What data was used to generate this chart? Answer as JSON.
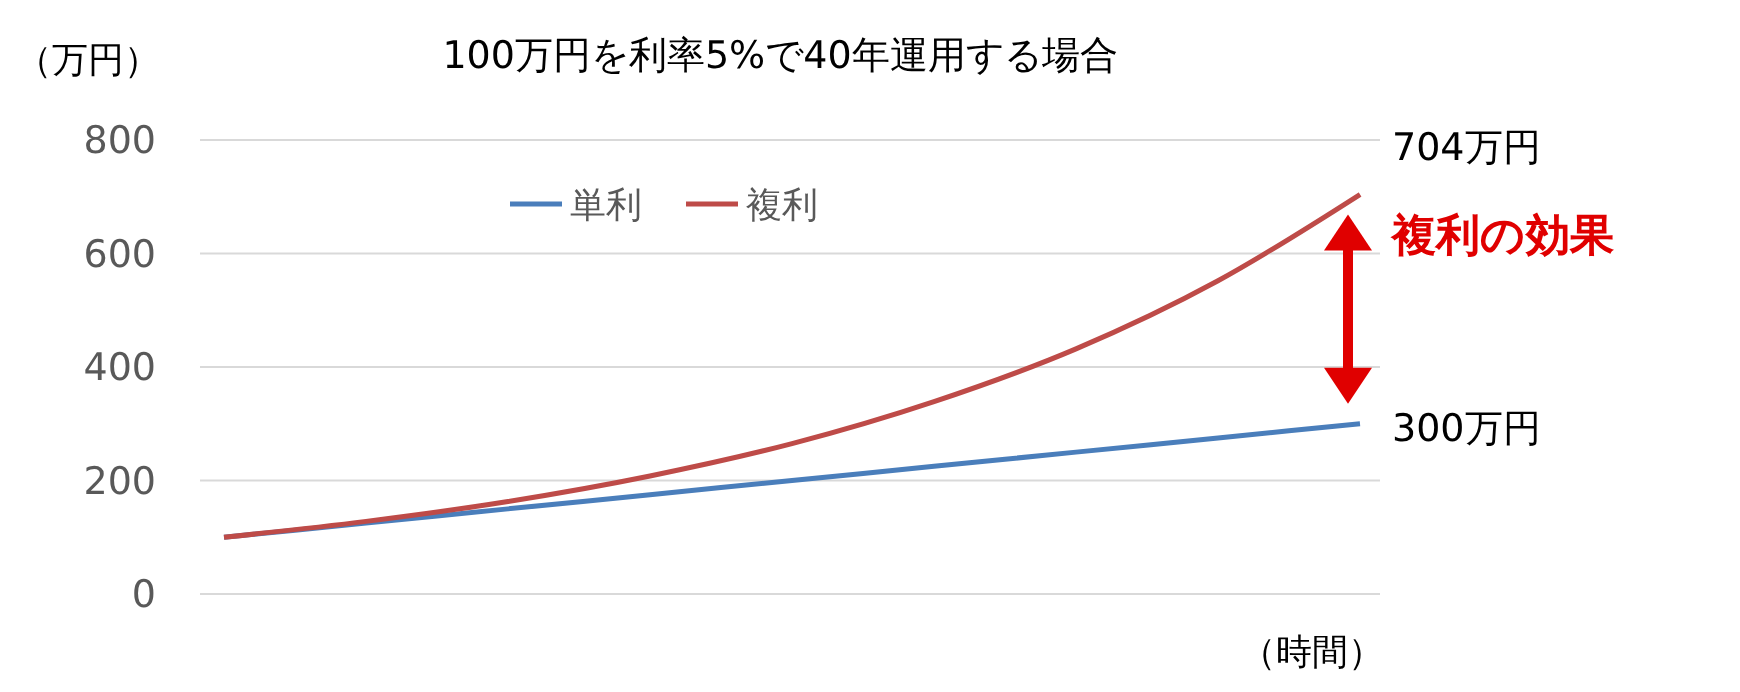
{
  "chart_data": {
    "type": "line",
    "title": "100万円を利率5%で40年運用する場合",
    "ylabel": "（万円）",
    "xlabel": "（時間）",
    "categories": [
      null,
      null,
      null,
      null,
      null,
      null,
      null,
      null,
      null
    ],
    "series": [
      {
        "name": "単利",
        "color": "#4a7ebb",
        "values": [
          100,
          125,
          150,
          175,
          200,
          225,
          250,
          275,
          300
        ]
      },
      {
        "name": "複利",
        "color": "#be4b48",
        "values": [
          100,
          128,
          163,
          208,
          265,
          339,
          432,
          552,
          704
        ]
      }
    ],
    "ylim": [
      0,
      800
    ],
    "yticks": [
      0,
      200,
      400,
      600,
      800
    ],
    "grid": "y",
    "legend": "top left",
    "marker": "none",
    "line_style": "solid",
    "annotations": [
      "704万円",
      "300万円",
      "複利の効果"
    ]
  }
}
